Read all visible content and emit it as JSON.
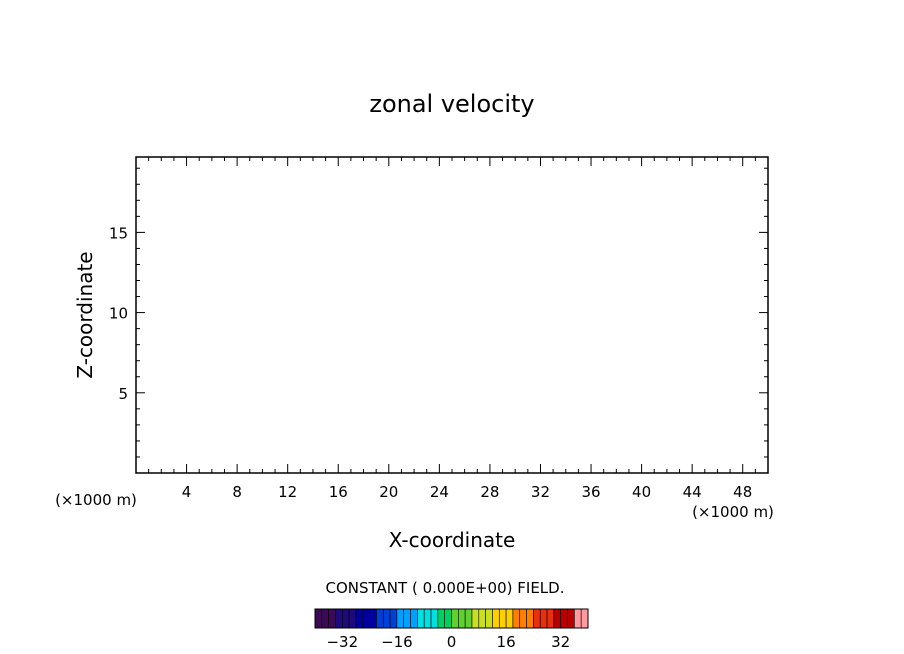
{
  "chart_data": {
    "type": "heatmap",
    "title": "zonal velocity",
    "xlabel": "X-coordinate",
    "ylabel": "Z-coordinate",
    "x_unit_left": "(×1000 m)",
    "x_unit_right": "(×1000 m)",
    "xlim": [
      0,
      50
    ],
    "ylim": [
      0,
      19.7
    ],
    "x_ticks": [
      4,
      8,
      12,
      16,
      20,
      24,
      28,
      32,
      36,
      40,
      44,
      48
    ],
    "x_tick_labels": [
      "4",
      "8",
      "12",
      "16",
      "20",
      "24",
      "28",
      "32",
      "36",
      "40",
      "44",
      "48"
    ],
    "x_minor_step": 1,
    "y_ticks": [
      5,
      10,
      15
    ],
    "y_tick_labels": [
      "5",
      "10",
      "15"
    ],
    "y_minor_step": 1,
    "field_note": "CONSTANT ( 0.000E+00) FIELD.",
    "colorbar": {
      "range": [
        -40,
        40
      ],
      "step": 2,
      "ticks": [
        -32,
        -16,
        0,
        16,
        32
      ],
      "tick_labels": [
        "−32",
        "−16",
        "0",
        "16",
        "32"
      ],
      "colors": [
        "#3c0a55",
        "#1e0a78",
        "#0000a0",
        "#0040d8",
        "#00a0ff",
        "#00e0e0",
        "#00d060",
        "#60d030",
        "#c8e020",
        "#ffd000",
        "#ff8000",
        "#e83010",
        "#b80000",
        "#ff9aa0"
      ]
    }
  }
}
